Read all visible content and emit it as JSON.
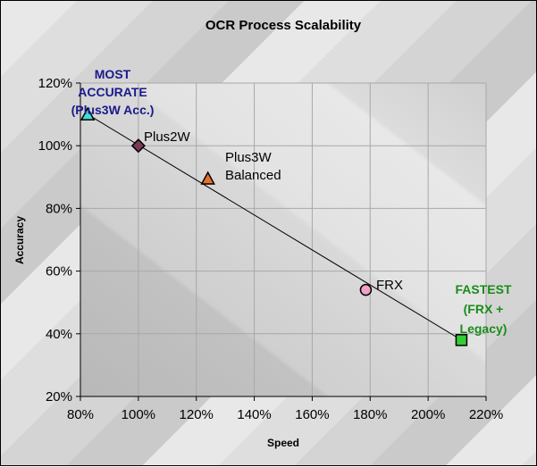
{
  "chart_data": {
    "type": "scatter",
    "title": "OCR Process Scalability",
    "xlabel": "Speed",
    "ylabel": "Accuracy",
    "xlim": [
      80,
      220
    ],
    "ylim": [
      20,
      120
    ],
    "xticks": [
      "80%",
      "100%",
      "120%",
      "140%",
      "160%",
      "180%",
      "200%",
      "220%"
    ],
    "yticks": [
      "20%",
      "40%",
      "60%",
      "80%",
      "100%",
      "120%"
    ],
    "grid": true,
    "points": [
      {
        "label_lines": [
          "MOST",
          "ACCURATE",
          "(Plus3W Acc.)"
        ],
        "x": 82.5,
        "y": 110,
        "marker": "triangle",
        "color": "#40e0d0",
        "label_color": "#1a1a8c",
        "bold": true
      },
      {
        "label_lines": [
          "Plus2W"
        ],
        "x": 100,
        "y": 100,
        "marker": "diamond",
        "color": "#7a3a5a",
        "label_color": "#000000",
        "bold": false
      },
      {
        "label_lines": [
          "Plus3W",
          "Balanced"
        ],
        "x": 124,
        "y": 89.5,
        "marker": "triangle",
        "color": "#e8702a",
        "label_color": "#000000",
        "bold": false
      },
      {
        "label_lines": [
          "FRX"
        ],
        "x": 178.5,
        "y": 54,
        "marker": "circle",
        "color": "#f0a0c8",
        "label_color": "#000000",
        "bold": false
      },
      {
        "label_lines": [
          "FASTEST",
          "(FRX +",
          "Legacy)"
        ],
        "x": 211.5,
        "y": 38,
        "marker": "square",
        "color": "#33cc33",
        "label_color": "#1a8c1a",
        "bold": true
      }
    ],
    "trendline": {
      "from": [
        82.5,
        110
      ],
      "to": [
        211.5,
        38
      ]
    }
  }
}
